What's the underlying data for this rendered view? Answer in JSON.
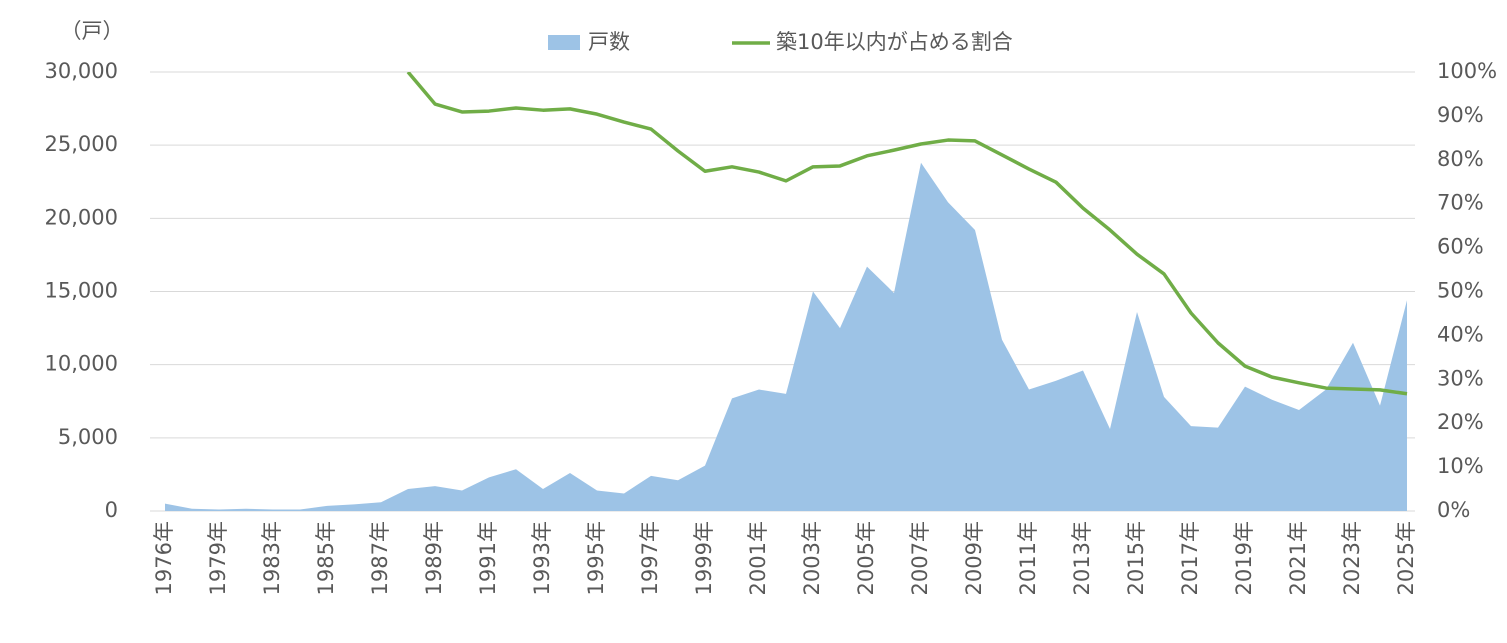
{
  "chart_data": {
    "type": "area_line",
    "y_axis_label": "（戸）",
    "categories": [
      "1976年",
      null,
      "1979年",
      null,
      "1983年",
      null,
      "1985年",
      null,
      "1987年",
      null,
      "1989年",
      null,
      "1991年",
      null,
      "1993年",
      null,
      "1995年",
      null,
      "1997年",
      null,
      "1999年",
      null,
      "2001年",
      null,
      "2003年",
      null,
      "2005年",
      null,
      "2007年",
      null,
      "2009年",
      null,
      "2011年",
      null,
      "2013年",
      null,
      "2015年",
      null,
      "2017年",
      null,
      "2019年",
      null,
      "2021年",
      null,
      "2023年",
      null,
      "2025年"
    ],
    "series": [
      {
        "name": "戸数",
        "type": "area",
        "axis": "y",
        "color": "#9dc3e6",
        "values": [
          500,
          150,
          100,
          150,
          100,
          100,
          350,
          450,
          600,
          1500,
          1700,
          1400,
          2300,
          2850,
          1500,
          2600,
          1400,
          1200,
          2400,
          2100,
          3100,
          7700,
          8300,
          8000,
          15000,
          12500,
          16700,
          14900,
          23800,
          21100,
          19200,
          11700,
          8300,
          8900,
          9600,
          5600,
          13600,
          7800,
          5800,
          5700,
          8500,
          7600,
          6900,
          8300,
          11500,
          7200,
          14400
        ]
      },
      {
        "name": "築10年以内が占める割合",
        "type": "line",
        "axis": "y2",
        "color": "#70ad47",
        "values": [
          null,
          null,
          null,
          null,
          null,
          null,
          null,
          null,
          null,
          100,
          92.7,
          90.9,
          91.1,
          91.8,
          91.3,
          91.6,
          90.4,
          88.6,
          87.0,
          82.0,
          77.4,
          78.4,
          77.2,
          75.2,
          78.4,
          78.6,
          80.9,
          82.2,
          83.6,
          84.5,
          84.3,
          81.1,
          77.9,
          74.9,
          69.0,
          64.0,
          58.5,
          54.0,
          45.1,
          38.3,
          33.0,
          30.5,
          29.2,
          28.0,
          27.8,
          27.6,
          26.7
        ]
      }
    ],
    "ylim": [
      0,
      30000
    ],
    "yticks": [
      0,
      {
        "value": 5000,
        "label": "5,000"
      },
      {
        "value": 10000,
        "label": "10,000"
      },
      {
        "value": 15000,
        "label": "15,000"
      },
      {
        "value": 20000,
        "label": "20,000"
      },
      {
        "value": 25000,
        "label": "25,000"
      },
      {
        "value": 30000,
        "label": "30,000"
      }
    ],
    "y2lim": [
      0,
      100
    ],
    "y2ticks": [
      {
        "value": 0,
        "label": "0%"
      },
      {
        "value": 10,
        "label": "10%"
      },
      {
        "value": 20,
        "label": "20%"
      },
      {
        "value": 30,
        "label": "30%"
      },
      {
        "value": 40,
        "label": "40%"
      },
      {
        "value": 50,
        "label": "50%"
      },
      {
        "value": 60,
        "label": "60%"
      },
      {
        "value": 70,
        "label": "70%"
      },
      {
        "value": 80,
        "label": "80%"
      },
      {
        "value": 90,
        "label": "90%"
      },
      {
        "value": 100,
        "label": "100%"
      }
    ],
    "grid": true,
    "legend": "top"
  }
}
